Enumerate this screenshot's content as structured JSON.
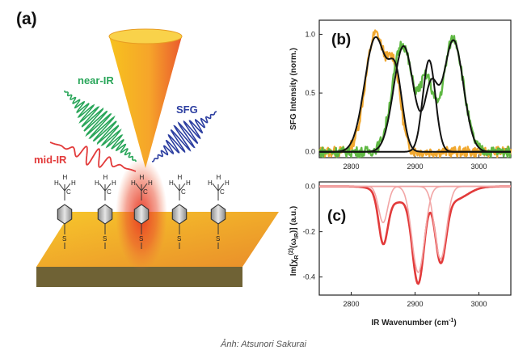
{
  "panels": {
    "a": {
      "label": "(a)",
      "beams": {
        "near_ir": "near-IR",
        "mid_ir": "mid-IR",
        "sfg": "SFG"
      },
      "molecule": {
        "h": "H",
        "c": "C",
        "s": "S"
      },
      "colors": {
        "near_ir": "#2aa65a",
        "mid_ir": "#e23a3a",
        "sfg": "#2c3ea0",
        "tip": "#f6b324",
        "substrate": "#f1a92c"
      }
    },
    "b": {
      "label": "(b)",
      "ylabel": "SFG Intensity (norm.)",
      "xticks": [
        "2800",
        "2900",
        "3000"
      ],
      "yticks": [
        "0.0",
        "0.5",
        "1.0"
      ]
    },
    "c": {
      "label": "(c)",
      "ylabel_prefix": "Im[",
      "ylabel_chi": "χ",
      "ylabel_sub": "R",
      "ylabel_sup": "(2)",
      "ylabel_mid": "(ω",
      "ylabel_sub2": "IR",
      "ylabel_suffix": ")] (a.u.)",
      "xlabel": "IR Wavenumber (cm",
      "xlabel_sup": "-1",
      "xlabel_close": ")",
      "xticks": [
        "2800",
        "2900",
        "3000"
      ],
      "yticks": [
        "0.0",
        "-0.2",
        "-0.4"
      ]
    }
  },
  "caption": "Ảnh: Atsunori Sakurai",
  "chart_data": [
    {
      "type": "line",
      "panel": "b",
      "title": "",
      "xlabel": "",
      "ylabel": "SFG Intensity (norm.)",
      "xlim": [
        2750,
        3050
      ],
      "ylim": [
        -0.05,
        1.12
      ],
      "series": [
        {
          "color": "#f0a830",
          "peaks": [
            {
              "x": 2838,
              "y": 1.0,
              "w": 22
            },
            {
              "x": 2868,
              "y": 0.62,
              "w": 14
            }
          ]
        },
        {
          "color": "#5fb843",
          "peaks": [
            {
              "x": 2880,
              "y": 0.92,
              "w": 22
            },
            {
              "x": 2918,
              "y": 0.58,
              "w": 15
            },
            {
              "x": 2960,
              "y": 0.97,
              "w": 22
            }
          ]
        },
        {
          "color": "#111111",
          "peaks": [
            {
              "x": 2838,
              "y": 0.97,
              "w": 24
            },
            {
              "x": 2870,
              "y": 0.58,
              "w": 15
            }
          ]
        },
        {
          "color": "#111111",
          "peaks": [
            {
              "x": 2882,
              "y": 0.9,
              "w": 22
            },
            {
              "x": 2925,
              "y": 0.52,
              "w": 14
            },
            {
              "x": 2960,
              "y": 0.95,
              "w": 22
            }
          ]
        },
        {
          "color": "#111111",
          "peaks": [
            {
              "x": 2922,
              "y": 0.78,
              "w": 14
            }
          ]
        }
      ]
    },
    {
      "type": "line",
      "panel": "c",
      "title": "",
      "xlabel": "IR Wavenumber (cm-1)",
      "ylabel": "Im[χR(2)(ωIR)] (a.u.)",
      "xlim": [
        2750,
        3050
      ],
      "ylim": [
        -0.48,
        0.02
      ],
      "series": [
        {
          "color": "#e23a3a",
          "style": "thick",
          "peaks": [
            {
              "x": 2850,
              "y": -0.21,
              "w": 10
            },
            {
              "x": 2905,
              "y": -0.41,
              "w": 13
            },
            {
              "x": 2940,
              "y": -0.3,
              "w": 12
            },
            {
              "x": 2870,
              "y": -0.07,
              "w": 30
            },
            {
              "x": 2960,
              "y": -0.06,
              "w": 30
            }
          ]
        },
        {
          "color": "#f2a6a6",
          "style": "thin",
          "peaks": [
            {
              "x": 2905,
              "y": -0.38,
              "w": 14
            }
          ]
        },
        {
          "color": "#f2a6a6",
          "style": "thin",
          "peaks": [
            {
              "x": 2940,
              "y": -0.32,
              "w": 13
            }
          ]
        },
        {
          "color": "#f2a6a6",
          "style": "thin",
          "peaks": [
            {
              "x": 2850,
              "y": -0.16,
              "w": 10
            }
          ]
        }
      ]
    }
  ]
}
